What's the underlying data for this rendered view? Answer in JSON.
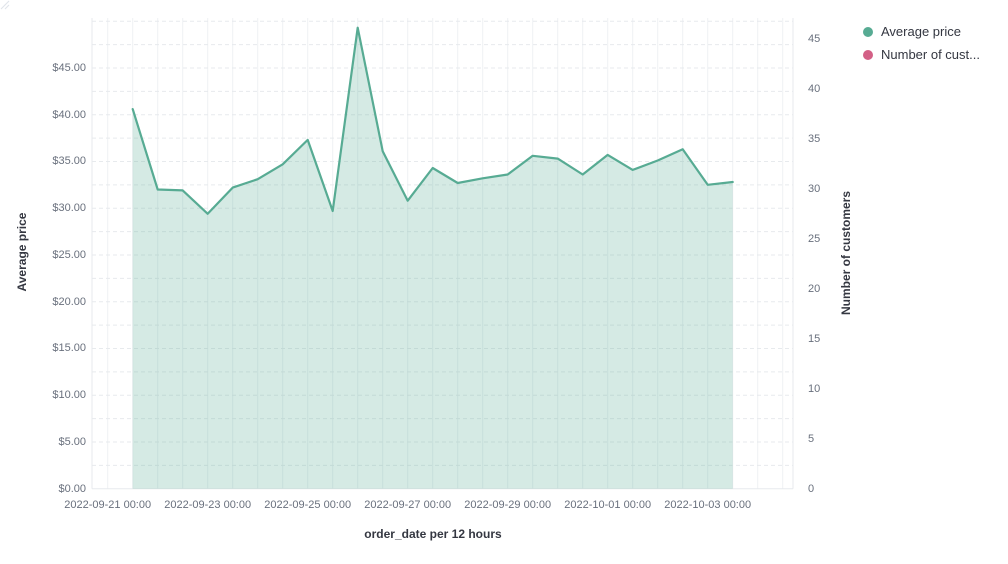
{
  "chart_data": {
    "type": "area",
    "title": "",
    "xlabel": "order_date per 12 hours",
    "ylabel_left": "Average price",
    "ylabel_right": "Number of customers",
    "grid": true,
    "legend_position": "top-right",
    "x": [
      "2022-09-21 12:00",
      "2022-09-22 00:00",
      "2022-09-22 12:00",
      "2022-09-23 00:00",
      "2022-09-23 12:00",
      "2022-09-24 00:00",
      "2022-09-24 12:00",
      "2022-09-25 00:00",
      "2022-09-25 12:00",
      "2022-09-26 00:00",
      "2022-09-26 12:00",
      "2022-09-27 00:00",
      "2022-09-27 12:00",
      "2022-09-28 00:00",
      "2022-09-28 12:00",
      "2022-09-29 00:00",
      "2022-09-29 12:00",
      "2022-09-30 00:00",
      "2022-09-30 12:00",
      "2022-10-01 00:00",
      "2022-10-01 12:00",
      "2022-10-02 00:00",
      "2022-10-02 12:00",
      "2022-10-03 00:00",
      "2022-10-03 12:00"
    ],
    "series": [
      {
        "name": "Average price",
        "axis": "left",
        "color": "#57ab93",
        "fill_opacity": 0.25,
        "values": [
          40.6,
          32.0,
          31.9,
          29.4,
          32.2,
          33.1,
          34.7,
          37.3,
          29.7,
          49.3,
          36.1,
          30.8,
          34.3,
          32.7,
          33.2,
          33.6,
          35.6,
          35.3,
          33.6,
          35.7,
          34.1,
          35.1,
          36.3,
          32.5,
          32.8
        ]
      },
      {
        "name": "Number of customers",
        "axis": "right",
        "color": "#d36086",
        "values": []
      }
    ],
    "x_tick_labels": [
      "2022-09-21 00:00",
      "2022-09-23 00:00",
      "2022-09-25 00:00",
      "2022-09-27 00:00",
      "2022-09-29 00:00",
      "2022-10-01 00:00",
      "2022-10-03 00:00"
    ],
    "y_left_tick_labels": [
      "$0.00",
      "$5.00",
      "$10.00",
      "$15.00",
      "$20.00",
      "$25.00",
      "$30.00",
      "$35.00",
      "$40.00",
      "$45.00"
    ],
    "y_left_tick_values": [
      0,
      5,
      10,
      15,
      20,
      25,
      30,
      35,
      40,
      45
    ],
    "y_left_range": [
      0,
      50
    ],
    "y_right_tick_labels": [
      "0",
      "5",
      "10",
      "15",
      "20",
      "25",
      "30",
      "35",
      "40",
      "45"
    ],
    "y_right_tick_values": [
      0,
      5,
      10,
      15,
      20,
      25,
      30,
      35,
      40,
      45
    ],
    "y_right_range": [
      0,
      47
    ]
  },
  "axes": {
    "x_title": "order_date per 12 hours",
    "y_left_title": "Average price",
    "y_right_title": "Number of customers"
  },
  "legend": {
    "items": [
      {
        "label": "Average price",
        "color": "#57ab93"
      },
      {
        "label": "Number of cust...",
        "color": "#d36086"
      }
    ]
  },
  "colors": {
    "series_green": "#57ab93",
    "series_pink": "#d36086",
    "grid_vertical": "#eef1f3",
    "grid_horizontal": "#e7eaed",
    "tick_text": "#69707d",
    "title_text": "#343741",
    "background": "#ffffff"
  }
}
